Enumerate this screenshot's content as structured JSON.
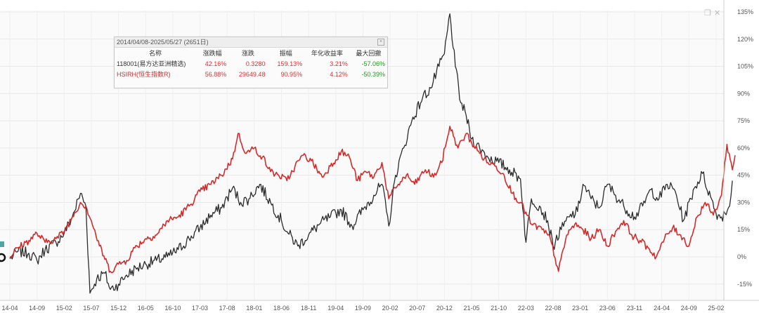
{
  "legend": {
    "title": "2014/04/08-2025/05/27 (2651日)",
    "headers": [
      "名称",
      "涨跌幅",
      "涨跌",
      "振幅",
      "年化收益率",
      "最大回撤"
    ],
    "rows": [
      {
        "name": "118001(易方达亚洲精选)",
        "change_pct": "42.16%",
        "change": "0.3280",
        "amplitude": "159.13%",
        "annualized": "3.21%",
        "max_drawdown": "-57.06%",
        "color": "#333333"
      },
      {
        "name": "HSIRH(恒生指数R)",
        "change_pct": "56.88%",
        "change": "29649.48",
        "amplitude": "90.95%",
        "annualized": "4.12%",
        "max_drawdown": "-50.39%",
        "color": "#d42a2a"
      }
    ]
  },
  "colors": {
    "fund": "#2b2b2b",
    "index": "#d42a2a",
    "positive": "#e03030",
    "negative": "#1a9a1a"
  },
  "icons": [
    "restore-icon",
    "close-icon",
    "start-marker-icon"
  ],
  "chart_data": {
    "type": "line",
    "x_tick_labels": [
      "14-04",
      "14-09",
      "15-02",
      "15-07",
      "15-12",
      "16-05",
      "16-10",
      "17-03",
      "17-08",
      "18-01",
      "18-06",
      "18-11",
      "19-04",
      "19-09",
      "20-02",
      "20-07",
      "20-12",
      "21-05",
      "21-10",
      "22-03",
      "22-08",
      "23-01",
      "23-06",
      "23-11",
      "24-04",
      "24-09",
      "25-02"
    ],
    "y_tick_labels": [
      "135%",
      "120%",
      "105%",
      "90%",
      "75%",
      "60%",
      "45%",
      "30%",
      "15%",
      "0%",
      "-15%"
    ],
    "ylim": [
      -18,
      135
    ],
    "grid": true,
    "series": [
      {
        "name": "118001(易方达亚洲精选)",
        "values": [
          [
            0,
            -1
          ],
          [
            0.3,
            3
          ],
          [
            0.7,
            2
          ],
          [
            1.0,
            -2
          ],
          [
            1.3,
            4
          ],
          [
            1.7,
            8
          ],
          [
            2.0,
            13
          ],
          [
            2.3,
            22
          ],
          [
            2.6,
            35
          ],
          [
            2.8,
            28
          ],
          [
            2.95,
            -20
          ],
          [
            3.2,
            -12
          ],
          [
            3.5,
            -9
          ],
          [
            3.7,
            -18
          ],
          [
            4.0,
            -15
          ],
          [
            4.3,
            -10
          ],
          [
            4.7,
            -6
          ],
          [
            5.0,
            -4
          ],
          [
            5.4,
            -2
          ],
          [
            5.8,
            0
          ],
          [
            6.2,
            4
          ],
          [
            6.6,
            10
          ],
          [
            7.0,
            16
          ],
          [
            7.4,
            23
          ],
          [
            7.8,
            27
          ],
          [
            8.2,
            38
          ],
          [
            8.5,
            30
          ],
          [
            8.8,
            32
          ],
          [
            9.2,
            40
          ],
          [
            9.6,
            30
          ],
          [
            10.0,
            20
          ],
          [
            10.2,
            14
          ],
          [
            10.6,
            6
          ],
          [
            11.0,
            12
          ],
          [
            11.4,
            18
          ],
          [
            11.8,
            22
          ],
          [
            12.2,
            26
          ],
          [
            12.6,
            17
          ],
          [
            13.0,
            26
          ],
          [
            13.4,
            34
          ],
          [
            13.7,
            40
          ],
          [
            13.95,
            17
          ],
          [
            14.2,
            45
          ],
          [
            14.5,
            60
          ],
          [
            14.8,
            75
          ],
          [
            15.2,
            88
          ],
          [
            15.5,
            93
          ],
          [
            15.8,
            105
          ],
          [
            16.0,
            112
          ],
          [
            16.2,
            134
          ],
          [
            16.4,
            105
          ],
          [
            16.6,
            85
          ],
          [
            16.8,
            78
          ],
          [
            17.0,
            65
          ],
          [
            17.3,
            60
          ],
          [
            17.6,
            55
          ],
          [
            18.0,
            52
          ],
          [
            18.4,
            48
          ],
          [
            18.8,
            43
          ],
          [
            19.0,
            8
          ],
          [
            19.2,
            32
          ],
          [
            19.5,
            28
          ],
          [
            19.8,
            20
          ],
          [
            20.0,
            6
          ],
          [
            20.3,
            15
          ],
          [
            20.6,
            22
          ],
          [
            20.9,
            25
          ],
          [
            21.1,
            40
          ],
          [
            21.4,
            32
          ],
          [
            21.7,
            27
          ],
          [
            22.0,
            40
          ],
          [
            22.3,
            34
          ],
          [
            22.6,
            28
          ],
          [
            23.0,
            22
          ],
          [
            23.3,
            28
          ],
          [
            23.6,
            37
          ],
          [
            23.9,
            32
          ],
          [
            24.2,
            40
          ],
          [
            24.5,
            36
          ],
          [
            24.8,
            20
          ],
          [
            25.2,
            38
          ],
          [
            25.5,
            46
          ],
          [
            25.8,
            33
          ],
          [
            26.0,
            24
          ],
          [
            26.2,
            22
          ],
          [
            26.5,
            28
          ],
          [
            26.6,
            42
          ]
        ]
      },
      {
        "name": "HSIRH(恒生指数R)",
        "values": [
          [
            0,
            0
          ],
          [
            0.3,
            5
          ],
          [
            0.7,
            9
          ],
          [
            1.0,
            13
          ],
          [
            1.3,
            8
          ],
          [
            1.7,
            10
          ],
          [
            2.0,
            14
          ],
          [
            2.3,
            22
          ],
          [
            2.6,
            30
          ],
          [
            2.8,
            28
          ],
          [
            3.0,
            20
          ],
          [
            3.3,
            6
          ],
          [
            3.7,
            -8
          ],
          [
            4.0,
            -4
          ],
          [
            4.3,
            -2
          ],
          [
            4.6,
            5
          ],
          [
            5.0,
            10
          ],
          [
            5.4,
            12
          ],
          [
            5.8,
            20
          ],
          [
            6.2,
            22
          ],
          [
            6.6,
            28
          ],
          [
            7.0,
            36
          ],
          [
            7.4,
            40
          ],
          [
            7.8,
            45
          ],
          [
            8.2,
            54
          ],
          [
            8.4,
            68
          ],
          [
            8.7,
            57
          ],
          [
            9.0,
            60
          ],
          [
            9.3,
            55
          ],
          [
            9.6,
            47
          ],
          [
            9.9,
            45
          ],
          [
            10.2,
            42
          ],
          [
            10.5,
            50
          ],
          [
            10.8,
            56
          ],
          [
            11.1,
            53
          ],
          [
            11.5,
            44
          ],
          [
            11.8,
            50
          ],
          [
            12.2,
            58
          ],
          [
            12.5,
            55
          ],
          [
            12.8,
            42
          ],
          [
            13.1,
            47
          ],
          [
            13.4,
            44
          ],
          [
            13.7,
            52
          ],
          [
            13.95,
            32
          ],
          [
            14.3,
            40
          ],
          [
            14.6,
            45
          ],
          [
            14.9,
            40
          ],
          [
            15.3,
            48
          ],
          [
            15.6,
            44
          ],
          [
            15.9,
            52
          ],
          [
            16.2,
            72
          ],
          [
            16.5,
            60
          ],
          [
            16.8,
            68
          ],
          [
            17.0,
            63
          ],
          [
            17.3,
            57
          ],
          [
            17.6,
            52
          ],
          [
            17.9,
            50
          ],
          [
            18.2,
            45
          ],
          [
            18.5,
            35
          ],
          [
            18.8,
            30
          ],
          [
            19.2,
            18
          ],
          [
            19.6,
            15
          ],
          [
            19.9,
            10
          ],
          [
            20.2,
            -8
          ],
          [
            20.5,
            12
          ],
          [
            20.8,
            18
          ],
          [
            21.1,
            15
          ],
          [
            21.4,
            10
          ],
          [
            21.7,
            15
          ],
          [
            22.0,
            6
          ],
          [
            22.3,
            14
          ],
          [
            22.6,
            20
          ],
          [
            22.9,
            12
          ],
          [
            23.2,
            9
          ],
          [
            23.5,
            5
          ],
          [
            23.8,
            0
          ],
          [
            24.1,
            10
          ],
          [
            24.4,
            16
          ],
          [
            24.7,
            12
          ],
          [
            25.0,
            6
          ],
          [
            25.3,
            22
          ],
          [
            25.6,
            30
          ],
          [
            25.9,
            23
          ],
          [
            26.2,
            34
          ],
          [
            26.4,
            62
          ],
          [
            26.6,
            48
          ],
          [
            26.7,
            56
          ]
        ]
      }
    ]
  }
}
